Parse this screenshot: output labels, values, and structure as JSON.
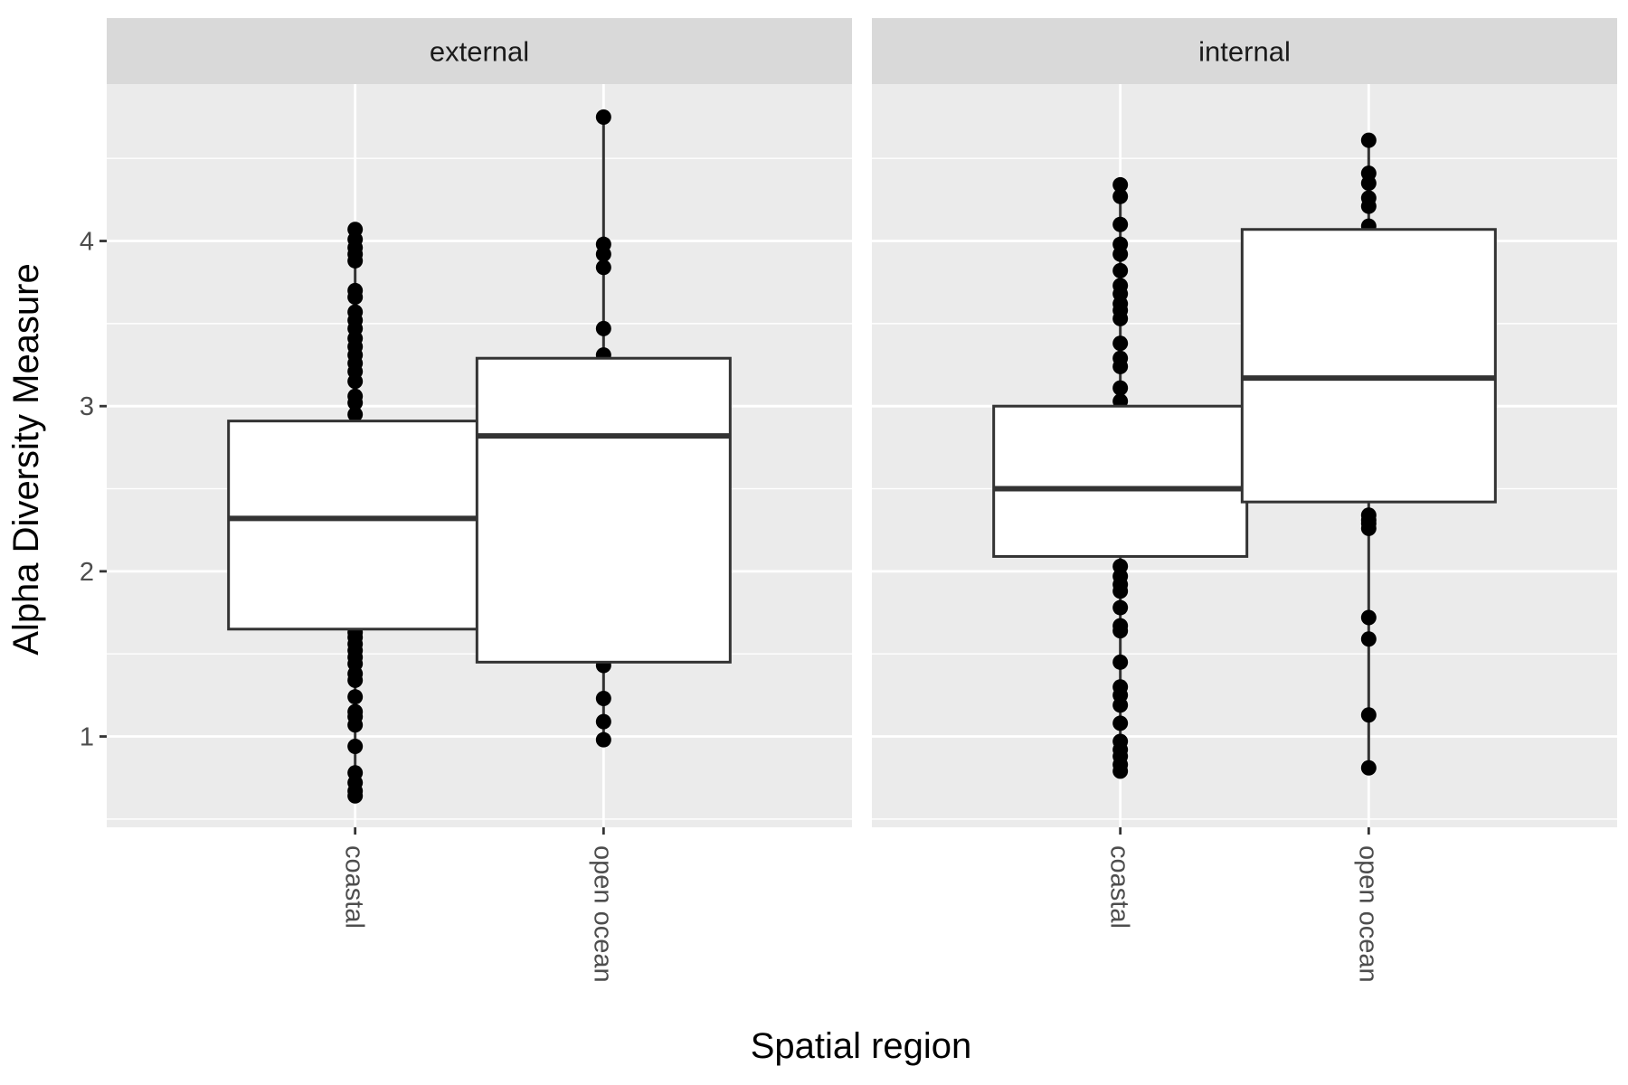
{
  "chart_data": {
    "type": "boxplot",
    "xlabel": "Spatial region",
    "ylabel": "Alpha Diversity Measure",
    "ylim": [
      0.45,
      4.95
    ],
    "y_ticks": [
      1,
      2,
      3,
      4
    ],
    "grid": true,
    "categories": [
      "coastal",
      "open ocean"
    ],
    "facets": [
      {
        "name": "external",
        "groups": [
          {
            "category": "coastal",
            "q1": 1.65,
            "median": 2.32,
            "q3": 2.91,
            "whisker_low": 0.64,
            "whisker_high": 4.07,
            "points": [
              0.64,
              0.67,
              0.72,
              0.78,
              0.94,
              1.07,
              1.12,
              1.15,
              1.24,
              1.34,
              1.38,
              1.44,
              1.48,
              1.52,
              1.56,
              1.6,
              1.63,
              2.95,
              3.02,
              3.06,
              3.15,
              3.21,
              3.26,
              3.31,
              3.36,
              3.41,
              3.47,
              3.52,
              3.57,
              3.66,
              3.7,
              3.88,
              3.92,
              3.96,
              4.01,
              4.07
            ]
          },
          {
            "category": "open ocean",
            "q1": 1.45,
            "median": 2.82,
            "q3": 3.29,
            "whisker_low": 0.98,
            "whisker_high": 4.75,
            "points": [
              0.98,
              1.09,
              1.23,
              1.43,
              3.31,
              3.47,
              3.84,
              3.92,
              3.98,
              4.75
            ]
          }
        ]
      },
      {
        "name": "internal",
        "groups": [
          {
            "category": "coastal",
            "q1": 2.09,
            "median": 2.5,
            "q3": 3.0,
            "whisker_low": 0.79,
            "whisker_high": 4.34,
            "points": [
              0.79,
              0.83,
              0.88,
              0.92,
              0.97,
              1.08,
              1.19,
              1.25,
              1.3,
              1.45,
              1.64,
              1.67,
              1.78,
              1.88,
              1.92,
              1.97,
              2.03,
              3.03,
              3.11,
              3.24,
              3.29,
              3.38,
              3.53,
              3.58,
              3.62,
              3.68,
              3.73,
              3.82,
              3.92,
              3.98,
              4.1,
              4.27,
              4.34
            ]
          },
          {
            "category": "open ocean",
            "q1": 2.42,
            "median": 3.17,
            "q3": 4.07,
            "whisker_low": 0.81,
            "whisker_high": 4.61,
            "points": [
              0.81,
              1.13,
              1.59,
              1.72,
              2.26,
              2.29,
              2.31,
              2.34,
              4.09,
              4.21,
              4.26,
              4.35,
              4.41,
              4.61
            ]
          }
        ]
      }
    ]
  }
}
